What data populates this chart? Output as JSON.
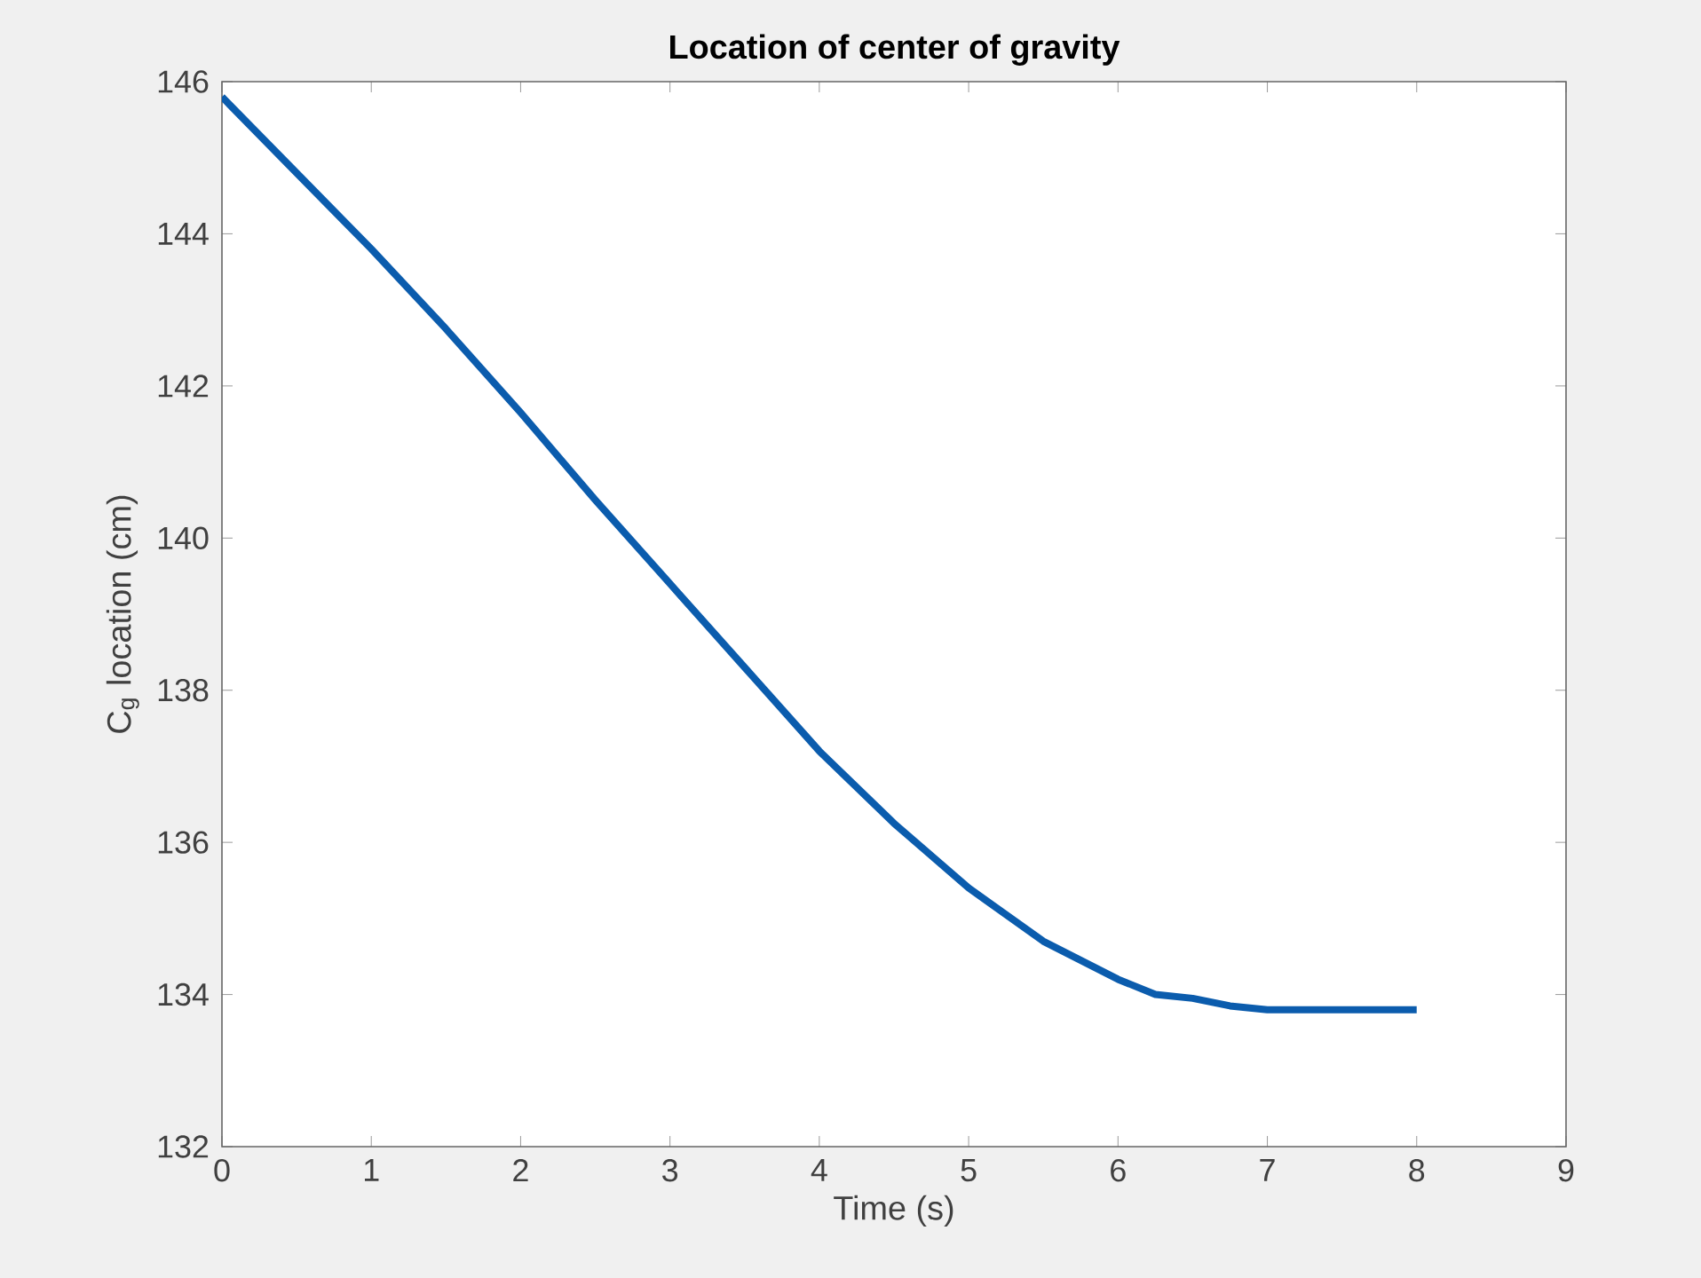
{
  "chart_data": {
    "type": "line",
    "title": "**Location of center of gravity**",
    "xlabel": "Time (s)",
    "ylabel": "C$_{g}$ location (cm)",
    "series": [
      {
        "color": "#0b5cad",
        "x": [
          0,
          0.5,
          1,
          1.5,
          2,
          2.5,
          3,
          3.5,
          4,
          4.5,
          5,
          5.5,
          6,
          6.25,
          6.5,
          6.75,
          7,
          7.5,
          8
        ],
        "values": [
          145.8,
          144.8,
          143.8,
          142.75,
          141.65,
          140.5,
          139.4,
          138.3,
          137.2,
          136.25,
          135.4,
          134.7,
          134.2,
          134.0,
          133.95,
          133.85,
          133.8,
          133.8,
          133.8
        ]
      }
    ],
    "xlim": [
      0,
      9
    ],
    "xticks": [
      0,
      1,
      2,
      3,
      4,
      5,
      6,
      7,
      8,
      9
    ],
    "ylim": [
      132,
      146
    ],
    "yticks": [
      132,
      134,
      136,
      138,
      140,
      142,
      144,
      146
    ],
    "marker": "none",
    "line_style": "solid"
  }
}
